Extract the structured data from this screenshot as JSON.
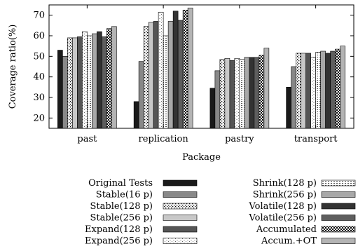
{
  "chart_data": {
    "type": "bar",
    "title": "",
    "xlabel": "Package",
    "ylabel": "Coverage ratio(%)",
    "ylim": [
      15,
      75
    ],
    "yticks": [
      20,
      30,
      40,
      50,
      60,
      70
    ],
    "categories": [
      "past",
      "replication",
      "pastry",
      "transport"
    ],
    "grid": false,
    "legend_position": "bottom",
    "series": [
      {
        "name": "Original Tests",
        "values": [
          53,
          28,
          34.5,
          35
        ]
      },
      {
        "name": "Stable(16 p)",
        "values": [
          50,
          47.5,
          43,
          45
        ]
      },
      {
        "name": "Stable(128 p)",
        "values": [
          59,
          64.5,
          48.5,
          51.5
        ]
      },
      {
        "name": "Stable(256 p)",
        "values": [
          59,
          66.5,
          49,
          51.5
        ]
      },
      {
        "name": "Expand(128 p)",
        "values": [
          59.5,
          67,
          48,
          51.5
        ]
      },
      {
        "name": "Expand(256 p)",
        "values": [
          62,
          71.5,
          49,
          49.5
        ]
      },
      {
        "name": "Shrink(128 p)",
        "values": [
          60,
          60,
          48.5,
          52
        ]
      },
      {
        "name": "Shrink(256 p)",
        "values": [
          61,
          67,
          49.5,
          52.5
        ]
      },
      {
        "name": "Volatile(128 p)",
        "values": [
          62,
          72,
          49.5,
          51.5
        ]
      },
      {
        "name": "Volatile(256 p)",
        "values": [
          59.5,
          67.5,
          49.5,
          52.5
        ]
      },
      {
        "name": "Accumulated",
        "values": [
          63.5,
          72.5,
          50.5,
          53.5
        ]
      },
      {
        "name": "Accum.+OT",
        "values": [
          64.5,
          73.5,
          54,
          55
        ]
      }
    ]
  }
}
